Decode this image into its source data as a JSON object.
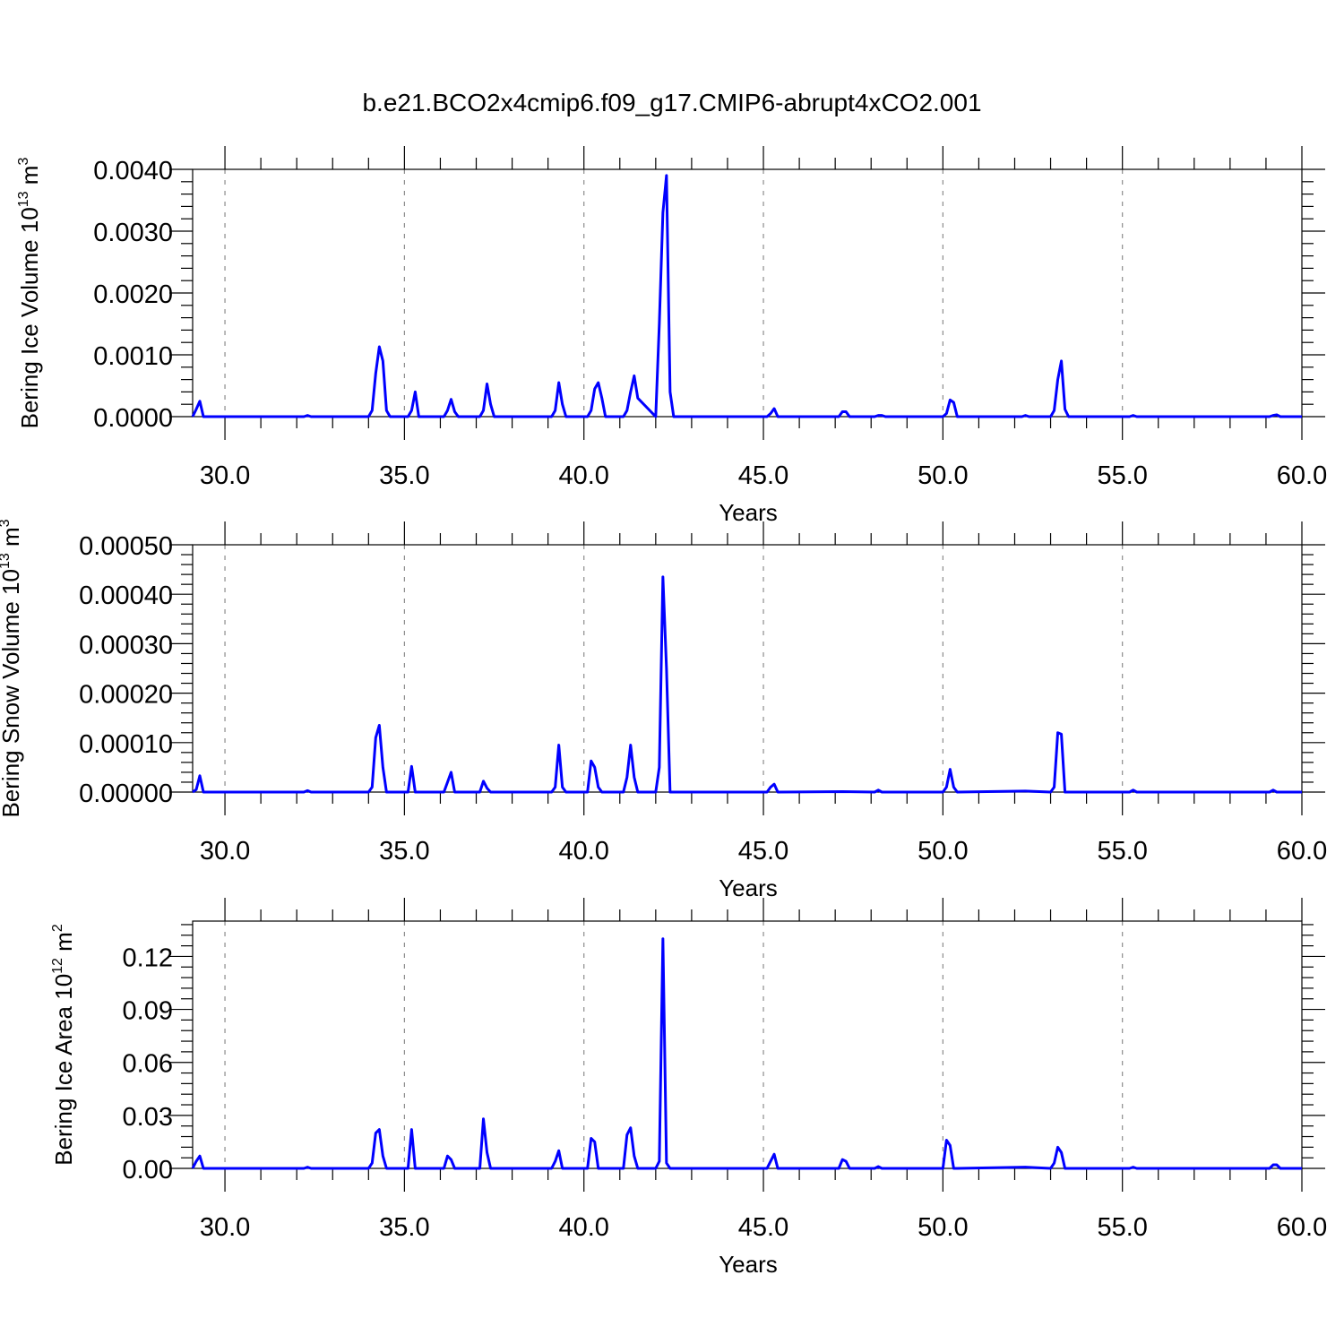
{
  "title": "b.e21.BCO2x4cmip6.f09_g17.CMIP6-abrupt4xCO2.001",
  "colors": {
    "series": "#0000ff",
    "axis": "#000000",
    "grid": "#8c8c8c"
  },
  "chart_data": [
    {
      "type": "line",
      "xlabel": "Years",
      "ylabel": {
        "text": "Bering Ice Volume 10",
        "exp": "13",
        "unit": " m",
        "unit_exp": "3"
      },
      "xlim": [
        29.1,
        60.0
      ],
      "ylim": [
        0,
        0.004
      ],
      "xticks": [
        "30.0",
        "35.0",
        "40.0",
        "45.0",
        "50.0",
        "55.0",
        "60.0"
      ],
      "yticks": [
        "0.0000",
        "0.0010",
        "0.0020",
        "0.0030",
        "0.0040"
      ],
      "grid": "vertical dashed",
      "series": [
        {
          "x": [
            29.1,
            29.2,
            29.3,
            29.4,
            29.5,
            32.2,
            32.3,
            32.4,
            34.0,
            34.1,
            34.2,
            34.3,
            34.4,
            34.5,
            34.6,
            35.1,
            35.2,
            35.3,
            35.4,
            36.1,
            36.2,
            36.3,
            36.4,
            36.5,
            37.1,
            37.2,
            37.3,
            37.4,
            37.5,
            39.1,
            39.2,
            39.3,
            39.4,
            39.5,
            40.1,
            40.2,
            40.3,
            40.4,
            40.5,
            40.6,
            41.1,
            41.2,
            41.3,
            41.4,
            41.5,
            42.0,
            42.1,
            42.2,
            42.3,
            42.4,
            42.5,
            45.1,
            45.2,
            45.3,
            45.4,
            47.1,
            47.2,
            47.3,
            47.4,
            48.1,
            48.2,
            48.3,
            48.4,
            50.0,
            50.1,
            50.2,
            50.3,
            50.4,
            50.5,
            52.2,
            52.3,
            52.4,
            53.0,
            53.1,
            53.2,
            53.3,
            53.4,
            53.5,
            55.2,
            55.3,
            55.4,
            59.1,
            59.2,
            59.3,
            59.4,
            60.0
          ],
          "y": [
            0,
            0.00012,
            0.00025,
            0,
            0,
            0,
            2e-05,
            0,
            0,
            0.0001,
            0.0007,
            0.00113,
            0.0009,
            0.0001,
            0,
            0,
            0.0001,
            0.0004,
            0,
            0,
            0.0001,
            0.00028,
            8e-05,
            0,
            0,
            0.0001,
            0.00053,
            0.0002,
            0,
            0,
            0.0001,
            0.00055,
            0.0002,
            0,
            0,
            0.0001,
            0.00045,
            0.00055,
            0.0003,
            0,
            0,
            0.0001,
            0.0004,
            0.00066,
            0.0003,
            0,
            0.0015,
            0.0033,
            0.0039,
            0.0004,
            0,
            0,
            5e-05,
            0.00013,
            0,
            0,
            8e-05,
            8e-05,
            0,
            0,
            2e-05,
            2e-05,
            0,
            0,
            5e-05,
            0.00027,
            0.00023,
            0,
            0,
            0,
            2e-05,
            0,
            0,
            0.0001,
            0.0006,
            0.0009,
            0.00012,
            0,
            0,
            2e-05,
            0,
            0,
            2e-05,
            3e-05,
            0,
            0
          ]
        }
      ]
    },
    {
      "type": "line",
      "xlabel": "Years",
      "ylabel": {
        "text": "Bering Snow Volume 10",
        "exp": "13",
        "unit": " m",
        "unit_exp": "3"
      },
      "xlim": [
        29.1,
        60.0
      ],
      "ylim": [
        0,
        0.0005
      ],
      "xticks": [
        "30.0",
        "35.0",
        "40.0",
        "45.0",
        "50.0",
        "55.0",
        "60.0"
      ],
      "yticks": [
        "0.00000",
        "0.00010",
        "0.00020",
        "0.00030",
        "0.00040",
        "0.00050"
      ],
      "grid": "vertical dashed",
      "series": [
        {
          "x": [
            29.1,
            29.2,
            29.3,
            29.4,
            32.2,
            32.3,
            32.4,
            34.0,
            34.1,
            34.2,
            34.3,
            34.4,
            34.5,
            35.1,
            35.2,
            35.3,
            36.1,
            36.2,
            36.3,
            36.4,
            37.1,
            37.2,
            37.3,
            37.4,
            39.1,
            39.2,
            39.3,
            39.4,
            39.5,
            40.1,
            40.2,
            40.3,
            40.4,
            40.5,
            41.1,
            41.2,
            41.3,
            41.4,
            41.5,
            42.0,
            42.1,
            42.2,
            42.3,
            42.4,
            45.1,
            45.2,
            45.3,
            45.4,
            47.2,
            48.1,
            48.2,
            48.3,
            50.0,
            50.1,
            50.2,
            50.3,
            50.4,
            52.3,
            53.0,
            53.1,
            53.2,
            53.3,
            53.4,
            55.2,
            55.3,
            55.4,
            59.1,
            59.2,
            59.3,
            60.0
          ],
          "y": [
            0,
            5e-06,
            3.3e-05,
            0,
            0,
            3e-06,
            0,
            0,
            1e-05,
            0.00011,
            0.000135,
            5e-05,
            0,
            0,
            5.2e-05,
            0,
            0,
            2e-05,
            4e-05,
            0,
            0,
            2.2e-05,
            8e-06,
            0,
            0,
            1e-05,
            9.5e-05,
            1e-05,
            0,
            0,
            6.3e-05,
            5e-05,
            1e-05,
            0,
            0,
            3e-05,
            9.5e-05,
            3e-05,
            0,
            0,
            5e-05,
            0.000435,
            0.00025,
            0,
            0,
            1e-05,
            1.6e-05,
            0,
            1e-06,
            0,
            4e-06,
            0,
            0,
            1e-05,
            4.6e-05,
            1e-05,
            0,
            2e-06,
            0,
            1e-05,
            0.00012,
            0.000117,
            0,
            0,
            4e-06,
            0,
            0,
            4e-06,
            0,
            0
          ]
        }
      ]
    },
    {
      "type": "line",
      "xlabel": "Years",
      "ylabel": {
        "text": "Bering Ice Area 10",
        "exp": "12",
        "unit": " m",
        "unit_exp": "2"
      },
      "xlim": [
        29.1,
        60.0
      ],
      "ylim": [
        0,
        0.14
      ],
      "xticks": [
        "30.0",
        "35.0",
        "40.0",
        "45.0",
        "50.0",
        "55.0",
        "60.0"
      ],
      "yticks": [
        "0.00",
        "0.03",
        "0.06",
        "0.09",
        "0.12"
      ],
      "grid": "vertical dashed",
      "series": [
        {
          "x": [
            29.1,
            29.2,
            29.3,
            29.4,
            32.2,
            32.3,
            32.4,
            34.0,
            34.1,
            34.2,
            34.3,
            34.4,
            34.5,
            35.1,
            35.2,
            35.3,
            36.1,
            36.2,
            36.3,
            36.4,
            37.1,
            37.2,
            37.3,
            37.4,
            39.1,
            39.2,
            39.3,
            39.4,
            40.1,
            40.2,
            40.3,
            40.4,
            41.1,
            41.2,
            41.3,
            41.4,
            41.5,
            42.0,
            42.1,
            42.2,
            42.3,
            42.4,
            45.1,
            45.2,
            45.3,
            45.4,
            47.1,
            47.2,
            47.3,
            47.4,
            48.1,
            48.2,
            48.3,
            50.0,
            50.1,
            50.2,
            50.3,
            50.4,
            52.3,
            53.0,
            53.1,
            53.2,
            53.3,
            53.4,
            55.2,
            55.3,
            55.4,
            59.1,
            59.2,
            59.3,
            59.4,
            60.0
          ],
          "y": [
            0,
            0.004,
            0.007,
            0,
            0,
            0.0007,
            0,
            0,
            0.003,
            0.02,
            0.022,
            0.007,
            0,
            0,
            0.022,
            0,
            0,
            0.007,
            0.005,
            0,
            0,
            0.028,
            0.009,
            0,
            0,
            0.004,
            0.01,
            0,
            0,
            0.017,
            0.015,
            0,
            0,
            0.019,
            0.023,
            0.007,
            0,
            0,
            0.004,
            0.13,
            0.003,
            0,
            0,
            0.004,
            0.008,
            0,
            0,
            0.005,
            0.004,
            0,
            0,
            0.001,
            0,
            0,
            0.016,
            0.013,
            0,
            0,
            0.0007,
            0,
            0.003,
            0.012,
            0.009,
            0,
            0,
            0.0007,
            0,
            0,
            0.002,
            0.002,
            0,
            0
          ]
        }
      ]
    }
  ]
}
